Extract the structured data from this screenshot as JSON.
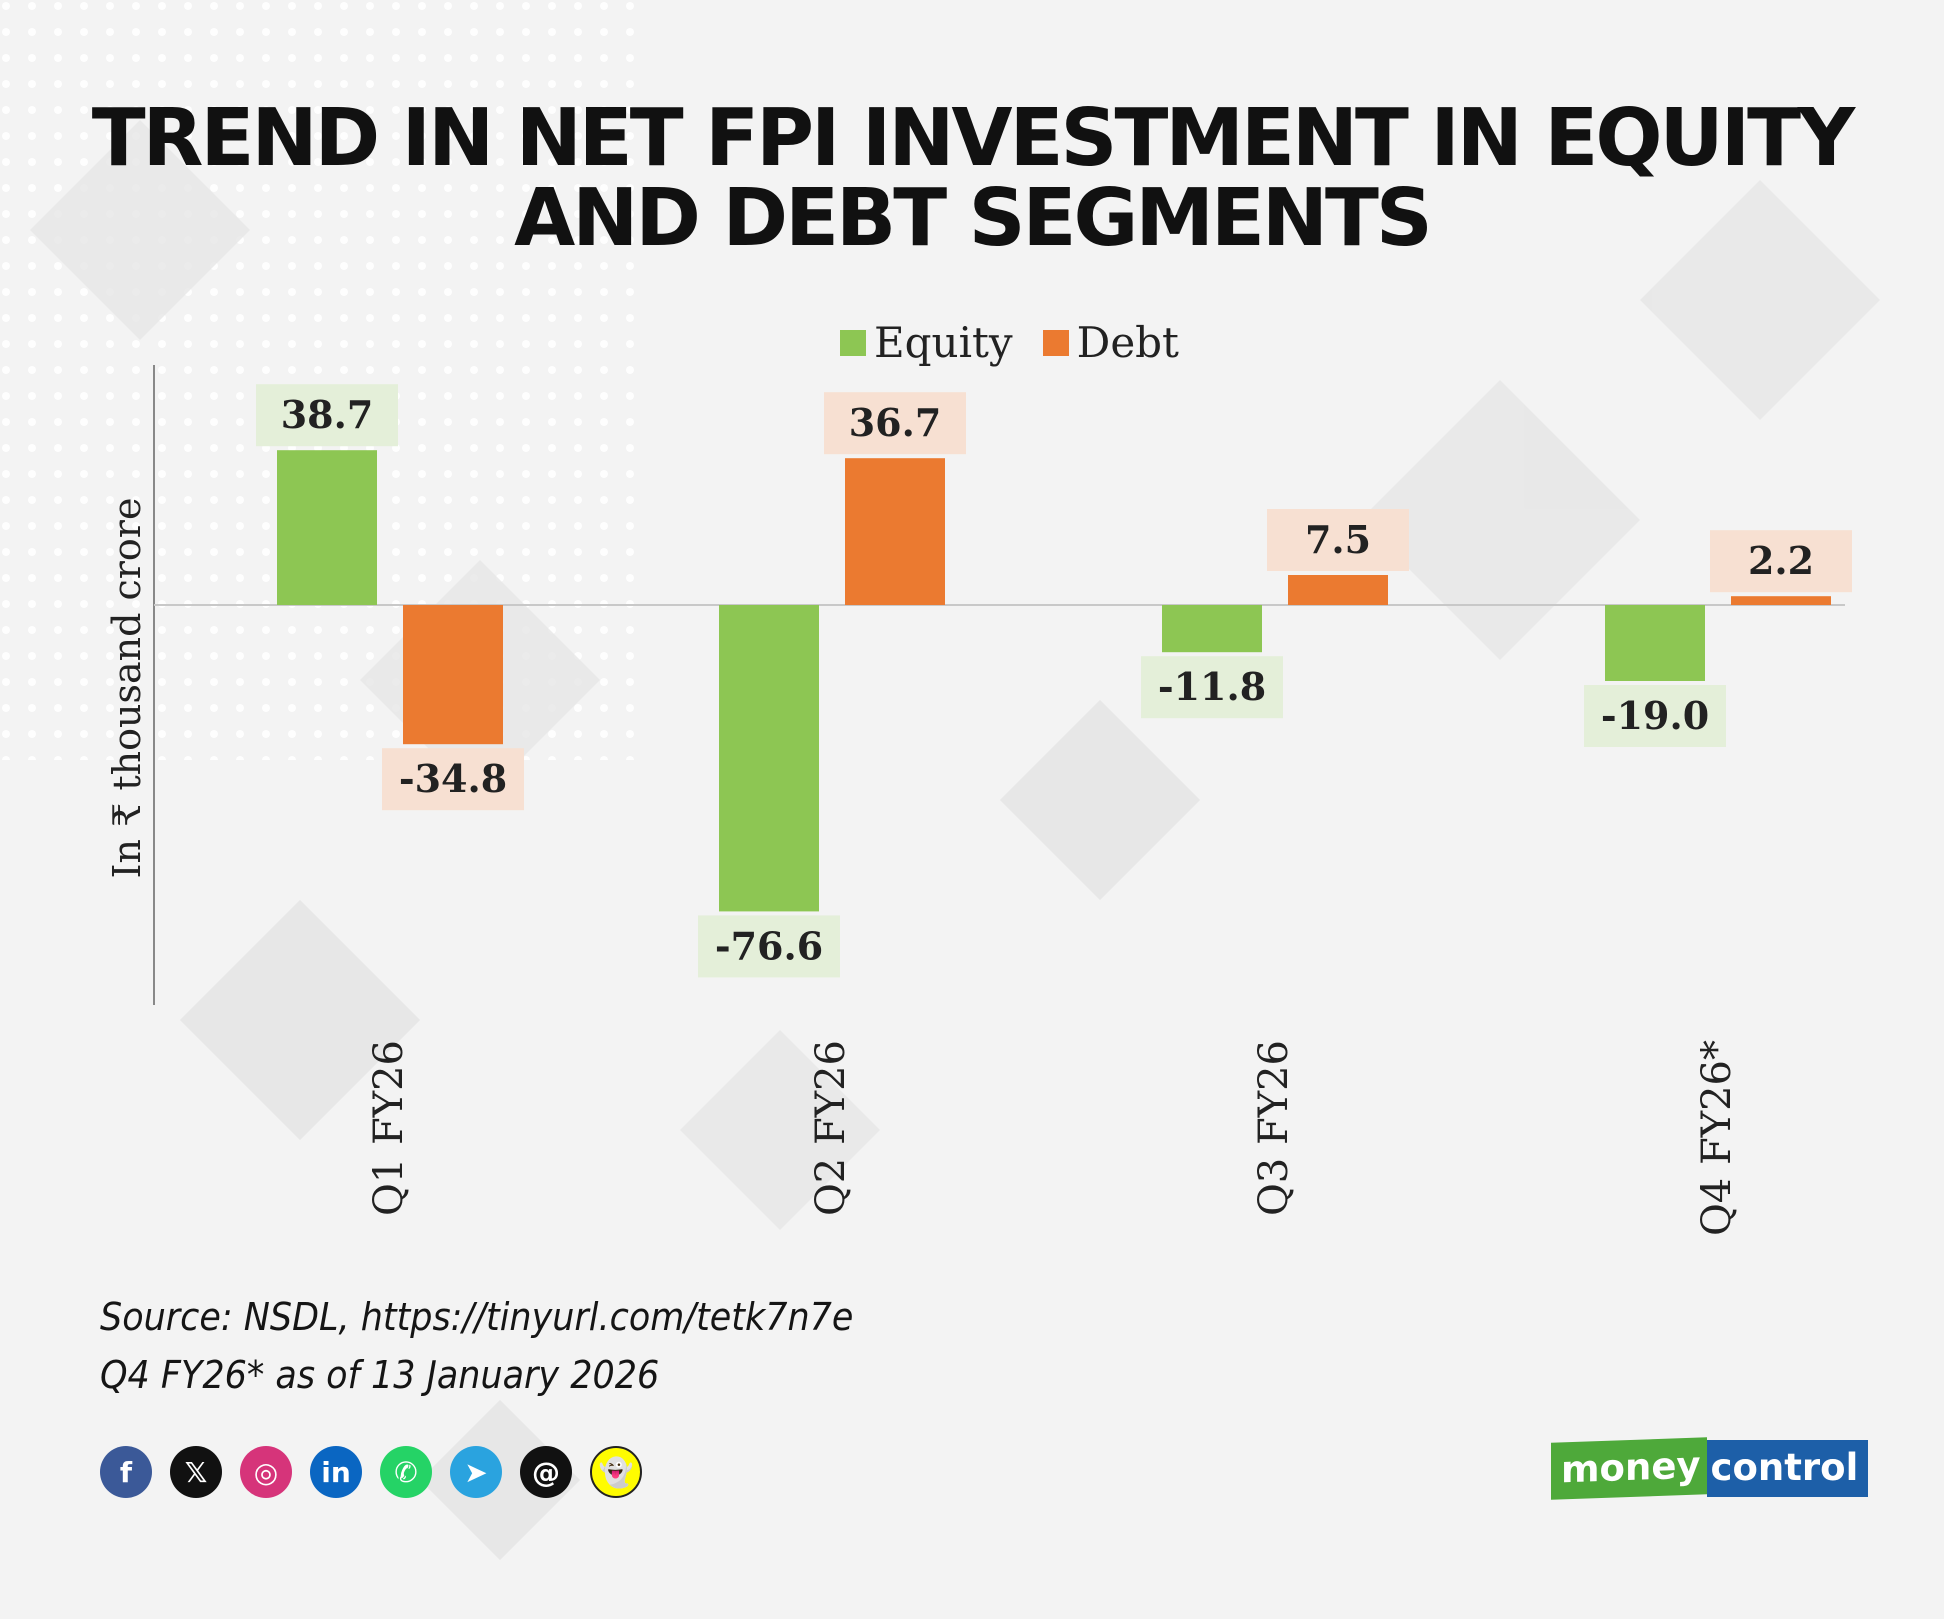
{
  "title_lines": [
    "TREND IN NET FPI INVESTMENT IN EQUITY",
    "AND DEBT SEGMENTS"
  ],
  "chart_data": {
    "type": "bar",
    "title": "TREND IN NET FPI INVESTMENT IN EQUITY AND DEBT SEGMENTS",
    "xlabel": "",
    "ylabel": "In ₹ thousand crore",
    "categories": [
      "Q1 FY26",
      "Q2 FY26",
      "Q3 FY26",
      "Q4 FY26*"
    ],
    "series": [
      {
        "name": "Equity",
        "values": [
          38.7,
          -76.6,
          -11.8,
          -19.0
        ],
        "labels": [
          "38.7",
          "-76.6",
          "-11.8",
          "-19.0"
        ],
        "color": "#8dc653",
        "label_bg": "#e4efd9"
      },
      {
        "name": "Debt",
        "values": [
          -34.8,
          36.7,
          7.5,
          2.2
        ],
        "labels": [
          "-34.8",
          "36.7",
          "7.5",
          "2.2"
        ],
        "color": "#eb7a30",
        "label_bg": "#f7e0d2"
      }
    ],
    "ylim": [
      -100,
      60
    ],
    "grid": false,
    "legend": "top"
  },
  "footer": {
    "source": "Source: NSDL, https://tinyurl.com/tetk7n7e",
    "note": "Q4 FY26* as of 13 January 2026"
  },
  "socials": [
    {
      "icon": "facebook-icon",
      "glyph": "f",
      "color": "#3b5998"
    },
    {
      "icon": "x-icon",
      "glyph": "𝕏",
      "color": "#111111"
    },
    {
      "icon": "instagram-icon",
      "glyph": "◎",
      "color": "#d6347a"
    },
    {
      "icon": "linkedin-icon",
      "glyph": "in",
      "color": "#0a66c2"
    },
    {
      "icon": "whatsapp-icon",
      "glyph": "✆",
      "color": "#25d366"
    },
    {
      "icon": "telegram-icon",
      "glyph": "➤",
      "color": "#2aa3df"
    },
    {
      "icon": "threads-icon",
      "glyph": "@",
      "color": "#111111"
    },
    {
      "icon": "snapchat-icon",
      "glyph": "👻",
      "color": "#fffc00"
    }
  ],
  "logo": {
    "part1": "money",
    "part2": "control"
  }
}
